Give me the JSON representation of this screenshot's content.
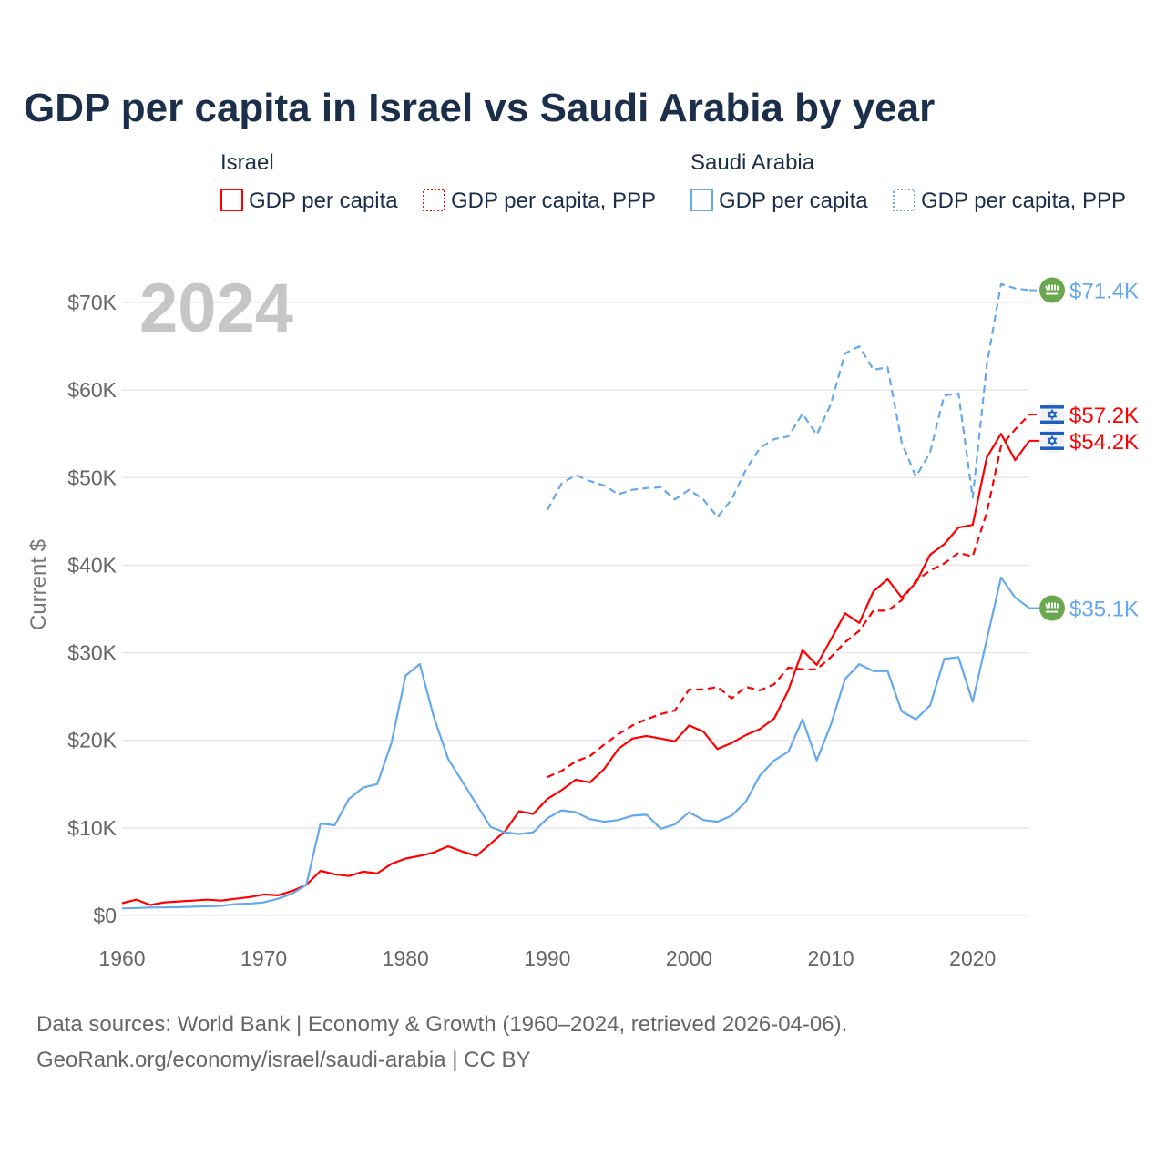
{
  "chart_data": {
    "type": "line",
    "title": "GDP per capita in Israel vs Saudi Arabia by year",
    "ylabel": "Current $",
    "xlabel": "",
    "xlim": [
      1960,
      2024
    ],
    "ylim": [
      0,
      70000
    ],
    "x_ticks": [
      1960,
      1970,
      1980,
      1990,
      2000,
      2010,
      2020
    ],
    "x_tick_labels": [
      "1960",
      "1970",
      "1980",
      "1990",
      "2000",
      "2010",
      "2020"
    ],
    "y_ticks": [
      0,
      10000,
      20000,
      30000,
      40000,
      50000,
      60000,
      70000
    ],
    "y_tick_labels": [
      "$0",
      "$10K",
      "$20K",
      "$30K",
      "$40K",
      "$50K",
      "$60K",
      "$70K"
    ],
    "grid": true,
    "current_year_label": "2024",
    "legend": {
      "placement": "top",
      "groups": [
        {
          "name": "Israel",
          "entries": [
            "GDP per capita",
            "GDP per capita, PPP"
          ]
        },
        {
          "name": "Saudi Arabia",
          "entries": [
            "GDP per capita",
            "GDP per capita, PPP"
          ]
        }
      ]
    },
    "series": [
      {
        "name": "Israel GDP per capita",
        "country": "Israel",
        "style": "solid",
        "color": "#ff0000",
        "start_year": 1960,
        "end_label": "$54.2K",
        "flag": "israel-flag",
        "values": [
          1400,
          1800,
          1200,
          1500,
          1600,
          1700,
          1800,
          1700,
          1900,
          2100,
          2400,
          2300,
          2800,
          3500,
          5100,
          4700,
          4500,
          5000,
          4800,
          5900,
          6500,
          6800,
          7200,
          7900,
          7300,
          6800,
          8200,
          9600,
          11900,
          11600,
          13300,
          14300,
          15500,
          15200,
          16700,
          19000,
          20200,
          20500,
          20200,
          19900,
          21700,
          21000,
          19000,
          19700,
          20600,
          21300,
          22500,
          25700,
          30300,
          28600,
          31500,
          34500,
          33400,
          37000,
          38400,
          36300,
          38000,
          41200,
          42400,
          44300,
          44600,
          52300,
          55000,
          52000,
          54200
        ]
      },
      {
        "name": "Israel GDP per capita, PPP",
        "country": "Israel",
        "style": "dashed",
        "color": "#ff0000",
        "start_year": 1990,
        "end_label": "$57.2K",
        "flag": "israel-flag",
        "values": [
          15800,
          16500,
          17600,
          18200,
          19500,
          20700,
          21700,
          22400,
          23000,
          23400,
          25800,
          25800,
          26100,
          24800,
          26100,
          25700,
          26400,
          28300,
          28100,
          28100,
          29500,
          31200,
          32500,
          34800,
          34800,
          36000,
          38200,
          39400,
          40200,
          41400,
          41000,
          46000,
          53600,
          55500,
          57200
        ]
      },
      {
        "name": "Saudi Arabia GDP per capita",
        "country": "Saudi Arabia",
        "style": "solid",
        "color": "#64a8ee",
        "start_year": 1960,
        "end_label": "$35.1K",
        "flag": "saudi-flag",
        "values": [
          800,
          850,
          900,
          920,
          950,
          1000,
          1050,
          1100,
          1300,
          1350,
          1500,
          1900,
          2500,
          3500,
          10500,
          10300,
          13300,
          14600,
          15000,
          19700,
          27400,
          28700,
          22600,
          17900,
          15300,
          12700,
          10100,
          9500,
          9300,
          9500,
          11100,
          12000,
          11800,
          11000,
          10700,
          10900,
          11400,
          11500,
          9900,
          10400,
          11800,
          10900,
          10700,
          11400,
          13000,
          16000,
          17700,
          18700,
          22400,
          17700,
          21800,
          27000,
          28700,
          27900,
          27900,
          23300,
          22400,
          24000,
          29300,
          29500,
          24400,
          31500,
          38600,
          36300,
          35100
        ]
      },
      {
        "name": "Saudi Arabia GDP per capita, PPP",
        "country": "Saudi Arabia",
        "style": "dashed",
        "color": "#64a8ee",
        "start_year": 1990,
        "end_label": "$71.4K",
        "flag": "saudi-flag",
        "values": [
          46300,
          49300,
          50300,
          49600,
          49100,
          48100,
          48600,
          48800,
          48900,
          47500,
          48600,
          47500,
          45500,
          47500,
          50900,
          53400,
          54400,
          54700,
          57300,
          54900,
          58400,
          64200,
          65000,
          62300,
          62600,
          54000,
          50100,
          52900,
          59400,
          59600,
          47700,
          62900,
          72100,
          71600,
          71400
        ]
      }
    ]
  },
  "footer": {
    "line1": "Data sources: World Bank | Economy & Growth (1960–2024, retrieved 2026-04-06).",
    "line2": "GeoRank.org/economy/israel/saudi-arabia | CC BY"
  }
}
